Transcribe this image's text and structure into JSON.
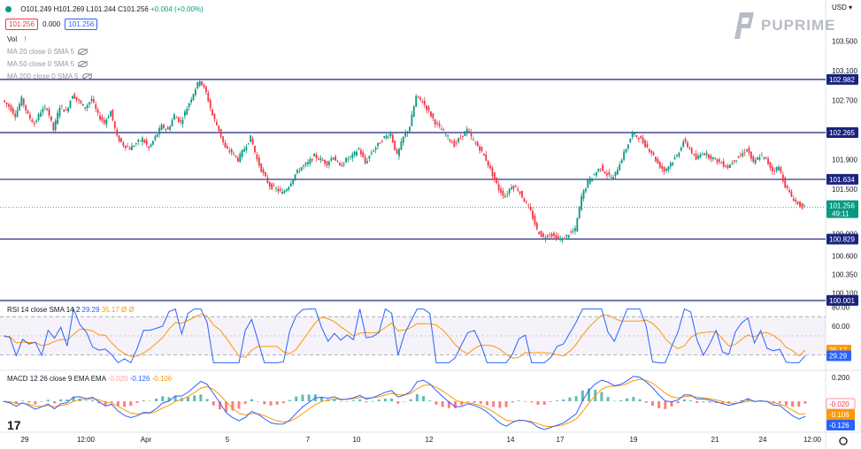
{
  "symbol_header": {
    "o": "O101.249",
    "h": "H101.269",
    "l": "L101.244",
    "c": "C101.256",
    "chg": "+0.004 (+0.00%)",
    "bid": "101.256",
    "spread": "0.000",
    "ask": "101.256"
  },
  "legend": {
    "vol": "Vol",
    "ma20": "MA 20 close 0 SMA 5",
    "ma50": "MA 50 close 0 SMA 5",
    "ma200": "MA 200 close 0 SMA 5"
  },
  "brand": "PUPRIME",
  "currency": "USD",
  "chart_data": [
    {
      "type": "candlestick",
      "price_axis_ticks": [
        "103.500",
        "103.100",
        "102.700",
        "102.300",
        "101.900",
        "101.500",
        "100.900",
        "100.600",
        "100.350",
        "100.100"
      ],
      "ylim": [
        100.0,
        103.6
      ],
      "horizontal_levels": [
        {
          "value": 102.982,
          "label": "102.982"
        },
        {
          "value": 102.265,
          "label": "102.265"
        },
        {
          "value": 101.634,
          "label": "101.634"
        },
        {
          "value": 100.829,
          "label": "100.829"
        },
        {
          "value": 100.001,
          "label": "100.001"
        }
      ],
      "last_price": {
        "value": 101.256,
        "label": "101.256",
        "countdown": "49:11"
      },
      "x_ticks": [
        "29",
        "12:00",
        "Apr",
        "5",
        "7",
        "10",
        "12",
        "14",
        "17",
        "19",
        "21",
        "24",
        "12:00"
      ],
      "close_path": [
        102.7,
        102.62,
        102.5,
        102.72,
        102.5,
        102.38,
        102.55,
        102.6,
        102.3,
        102.62,
        102.55,
        102.78,
        102.68,
        102.6,
        102.72,
        102.5,
        102.4,
        102.55,
        102.2,
        102.1,
        102.05,
        102.12,
        102.18,
        102.05,
        102.2,
        102.35,
        102.3,
        102.5,
        102.4,
        102.6,
        102.8,
        102.98,
        102.8,
        102.5,
        102.3,
        102.05,
        102.0,
        101.9,
        102.05,
        102.2,
        101.9,
        101.7,
        101.55,
        101.5,
        101.45,
        101.55,
        101.7,
        101.8,
        101.85,
        101.95,
        101.9,
        101.85,
        101.95,
        101.8,
        101.9,
        101.95,
        102.05,
        101.85,
        102.0,
        102.1,
        102.2,
        102.25,
        101.95,
        102.2,
        102.35,
        102.75,
        102.68,
        102.55,
        102.4,
        102.3,
        102.2,
        102.1,
        102.2,
        102.3,
        102.15,
        102.05,
        101.9,
        101.7,
        101.5,
        101.4,
        101.55,
        101.5,
        101.35,
        101.2,
        100.95,
        100.85,
        100.9,
        100.85,
        100.82,
        100.9,
        100.95,
        101.4,
        101.6,
        101.7,
        101.8,
        101.7,
        101.65,
        101.85,
        102.05,
        102.25,
        102.2,
        102.1,
        102.0,
        101.85,
        101.75,
        101.85,
        101.95,
        102.15,
        102.05,
        101.9,
        102.0,
        101.95,
        101.9,
        101.85,
        101.8,
        101.9,
        101.95,
        102.05,
        101.85,
        101.95,
        101.9,
        101.75,
        101.8,
        101.55,
        101.4,
        101.3,
        101.26
      ],
      "currency": "USD"
    },
    {
      "type": "line",
      "title": "RSI 14 close SMA 14 2",
      "series": [
        {
          "name": "RSI",
          "last": 29.29,
          "label": "29.29",
          "color": "#2962ff"
        },
        {
          "name": "SMA",
          "last": 35.17,
          "label": "35.17",
          "color": "#ff9800"
        }
      ],
      "axis_ticks": [
        "80.00",
        "60.00"
      ],
      "bands": [
        70,
        30
      ],
      "ylim": [
        15,
        85
      ]
    },
    {
      "type": "line",
      "title": "MACD 12 26 close 9 EMA EMA",
      "values_label": [
        "-0.020",
        "-0.126",
        "-0.106"
      ],
      "series": [
        {
          "name": "Histogram",
          "last": -0.02,
          "label": "-0.020"
        },
        {
          "name": "MACD",
          "last": -0.126,
          "label": "-0.126",
          "color": "#2962ff"
        },
        {
          "name": "Signal",
          "last": -0.106,
          "label": "-0.106",
          "color": "#ff9800"
        }
      ],
      "axis_ticks": [
        "0.200"
      ],
      "ylim": [
        -0.25,
        0.25
      ]
    }
  ],
  "colors": {
    "up": "#089981",
    "down": "#f23645",
    "level": "#1a237e",
    "rsi_band": "#7e57c2"
  }
}
